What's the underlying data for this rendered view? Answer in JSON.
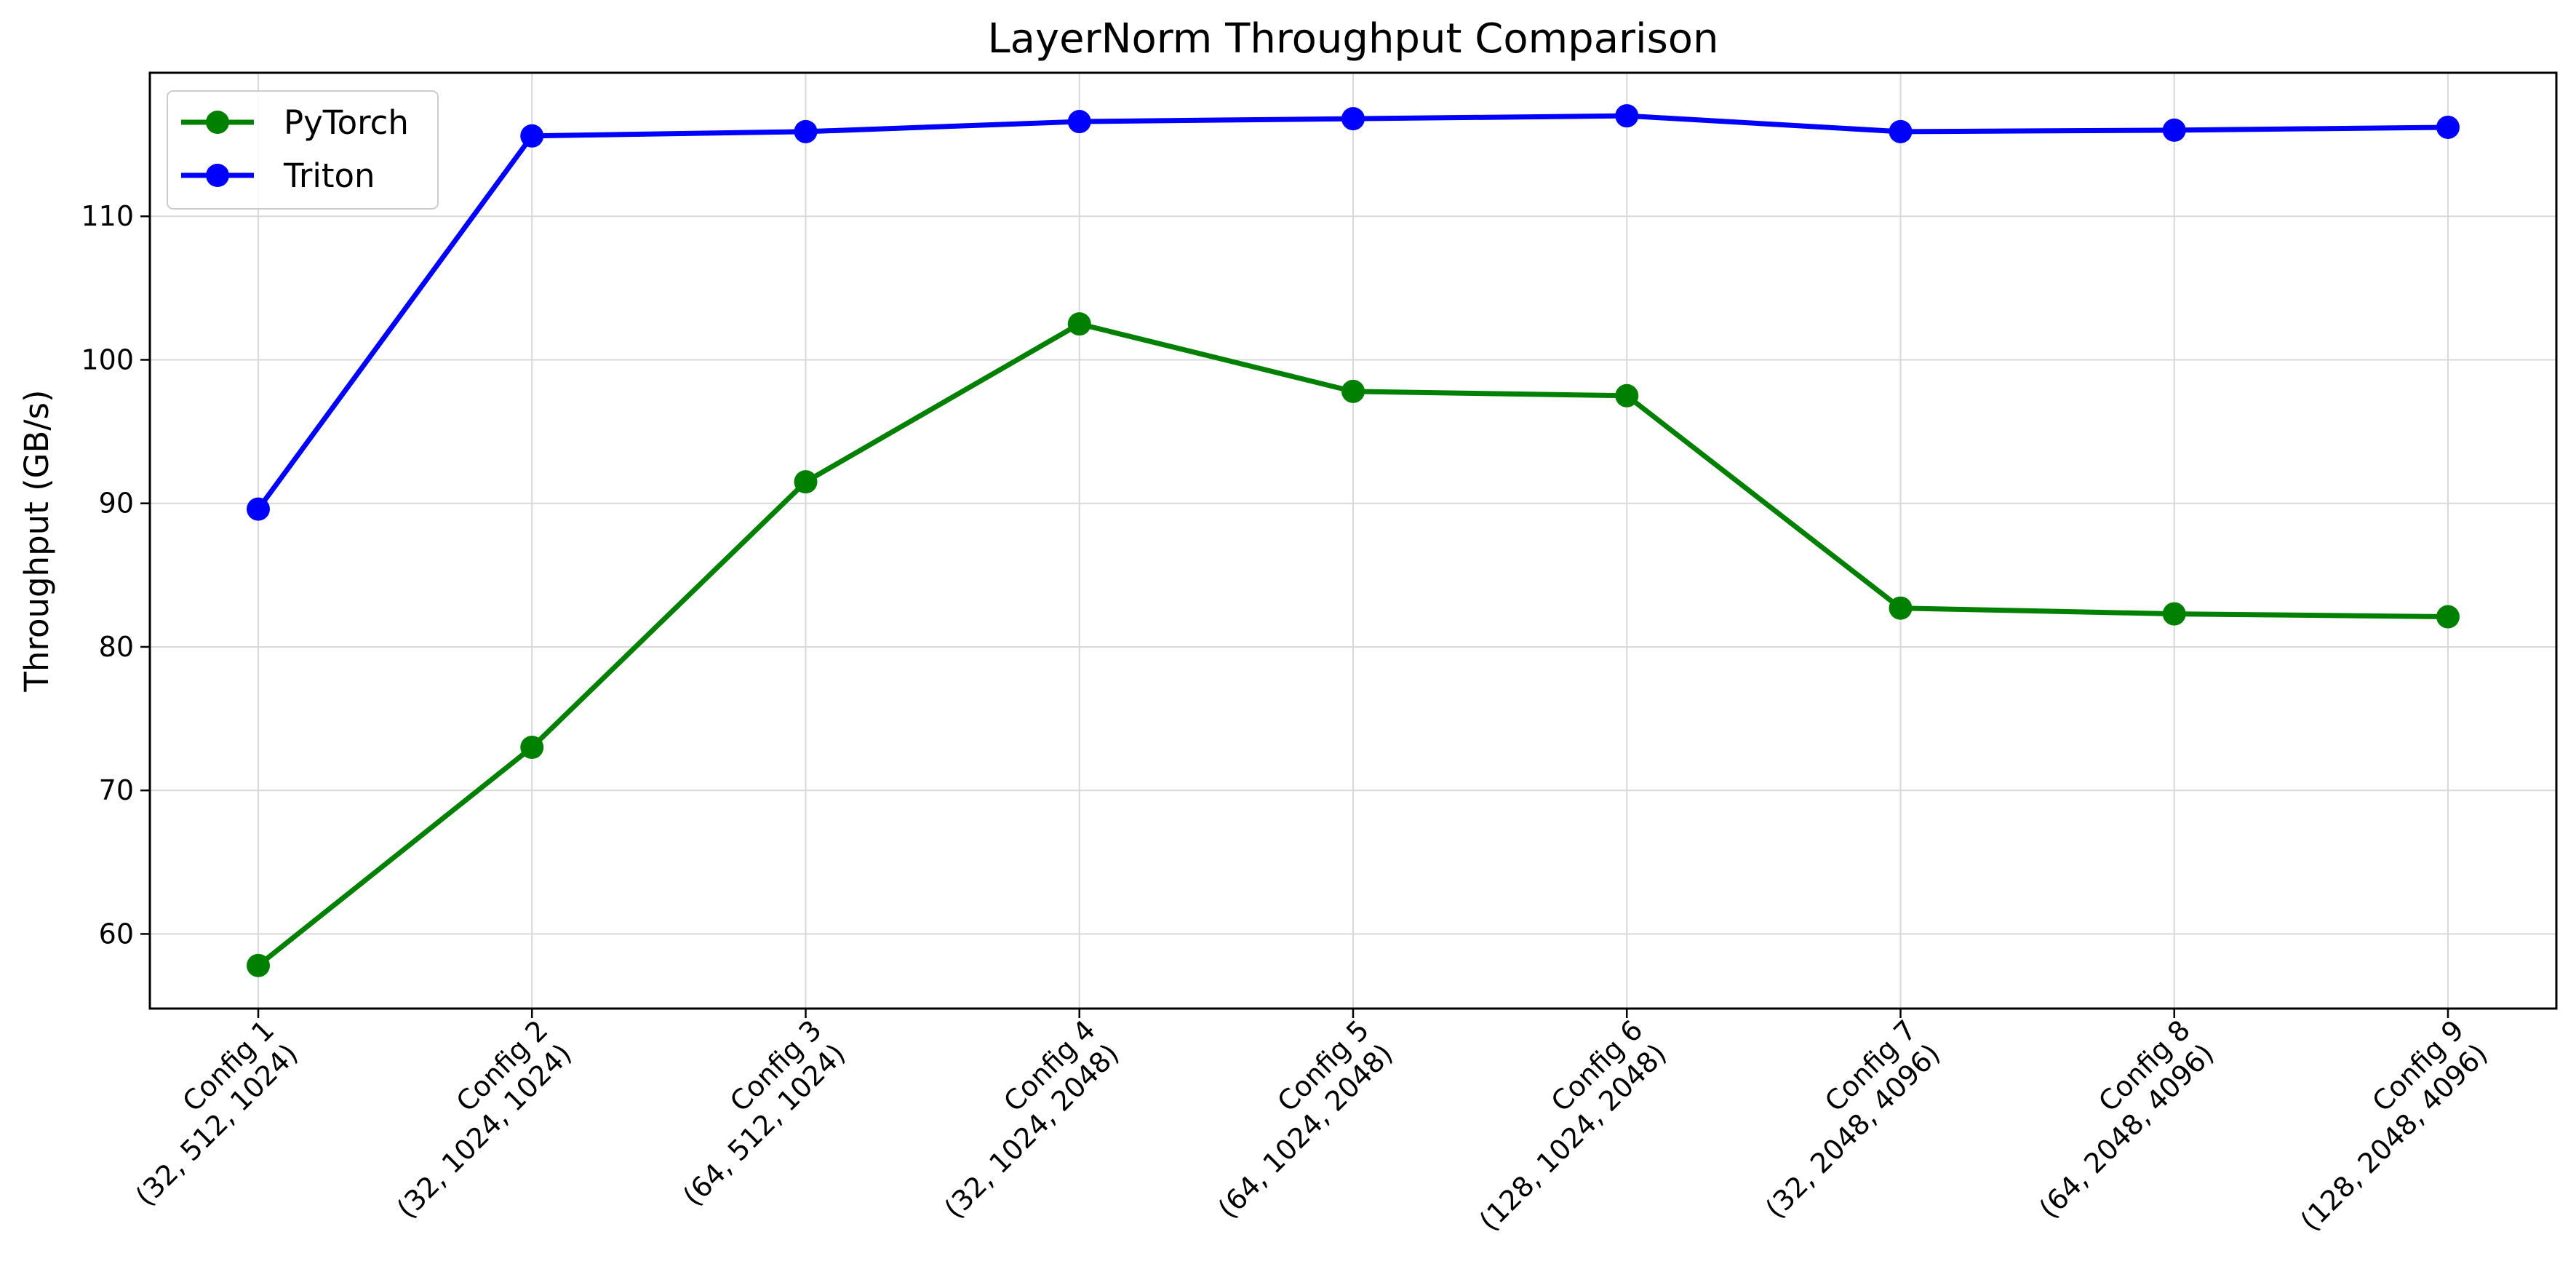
{
  "chart_data": {
    "type": "line",
    "title": "LayerNorm Throughput Comparison",
    "xlabel": "",
    "ylabel": "Throughput (GB/s)",
    "categories": [
      [
        "Config 1",
        "(32, 512, 1024)"
      ],
      [
        "Config 2",
        "(32, 1024, 1024)"
      ],
      [
        "Config 3",
        "(64, 512, 1024)"
      ],
      [
        "Config 4",
        "(32, 1024, 2048)"
      ],
      [
        "Config 5",
        "(64, 1024, 2048)"
      ],
      [
        "Config 6",
        "(128, 1024, 2048)"
      ],
      [
        "Config 7",
        "(32, 2048, 4096)"
      ],
      [
        "Config 8",
        "(64, 2048, 4096)"
      ],
      [
        "Config 9",
        "(128, 2048, 4096)"
      ]
    ],
    "series": [
      {
        "name": "PyTorch",
        "color": "#008000",
        "values": [
          57.8,
          73.0,
          91.5,
          102.5,
          97.8,
          97.5,
          82.7,
          82.3,
          82.1
        ]
      },
      {
        "name": "Triton",
        "color": "#0000ff",
        "values": [
          89.6,
          115.6,
          115.9,
          116.6,
          116.8,
          117.0,
          115.9,
          116.0,
          116.2
        ]
      }
    ],
    "yticks": [
      60,
      70,
      80,
      90,
      100,
      110
    ],
    "ylim": [
      54.8,
      120.0
    ],
    "grid": true,
    "legend_position": "top-left"
  }
}
